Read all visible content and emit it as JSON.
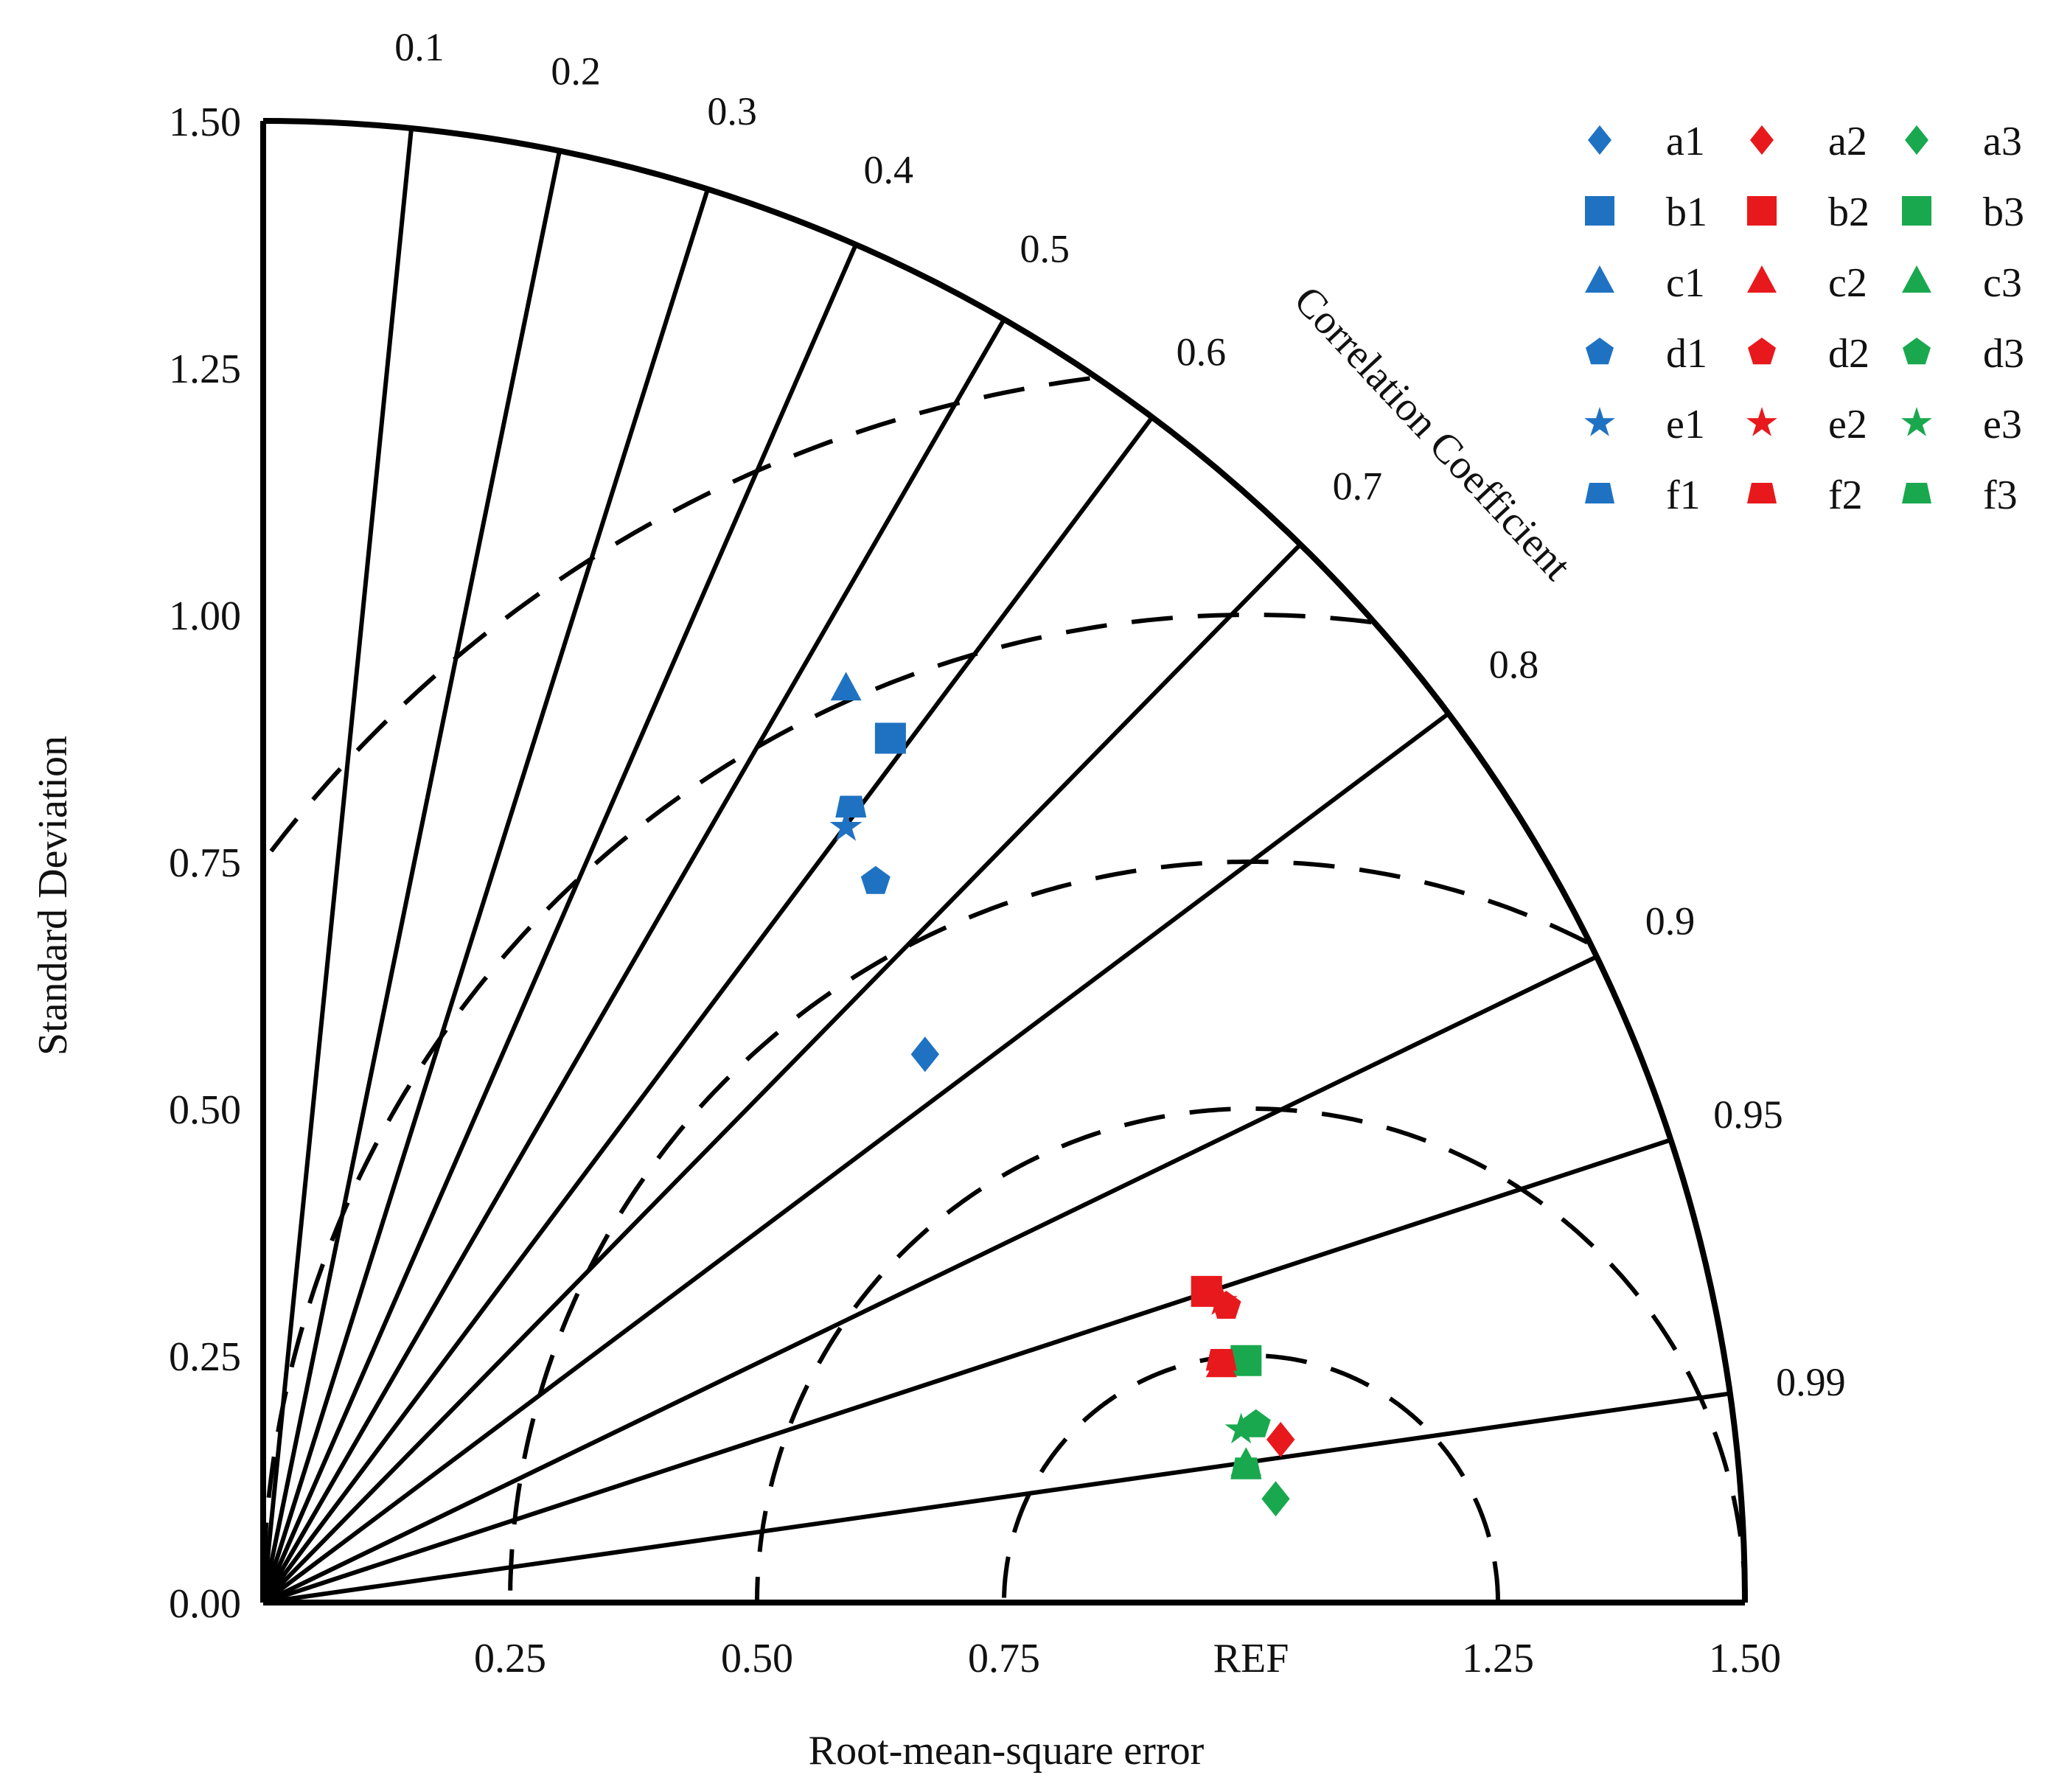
{
  "chart_data": {
    "type": "scatter",
    "subtype": "taylor-diagram",
    "xlabel": "Root-mean-square error",
    "ylabel": "Standard Deviation",
    "arc_label": "Correlation Coefficient",
    "std_ticks": [
      "0.00",
      "0.25",
      "0.50",
      "0.75",
      "1.00",
      "1.25",
      "1.50"
    ],
    "x_ticks": [
      "0.25",
      "0.50",
      "0.75",
      "REF",
      "1.25",
      "1.50"
    ],
    "x_tick_values": [
      0.25,
      0.5,
      0.75,
      1.0,
      1.25,
      1.5
    ],
    "corr_ticks": [
      "0.1",
      "0.2",
      "0.3",
      "0.4",
      "0.5",
      "0.6",
      "0.7",
      "0.8",
      "0.9",
      "0.95",
      "0.99"
    ],
    "corr_values": [
      0.1,
      0.2,
      0.3,
      0.4,
      0.5,
      0.6,
      0.7,
      0.8,
      0.9,
      0.95,
      0.99
    ],
    "rms_contours": [
      0.25,
      0.5,
      0.75,
      1.0,
      1.25
    ],
    "std_max": 1.5,
    "reference_std": 1.0,
    "grid": true,
    "legend_position": "top-right",
    "colors": {
      "group1": "#1f72c2",
      "group2": "#e8191c",
      "group3": "#1aa84f"
    },
    "series": [
      {
        "name": "a1",
        "marker": "diamond",
        "color": "#1f72c2",
        "x": 0.67,
        "y": 0.555
      },
      {
        "name": "a2",
        "marker": "diamond",
        "color": "#e8191c",
        "x": 1.03,
        "y": 0.165
      },
      {
        "name": "a3",
        "marker": "diamond",
        "color": "#1aa84f",
        "x": 1.025,
        "y": 0.105
      },
      {
        "name": "b1",
        "marker": "square",
        "color": "#1f72c2",
        "x": 0.635,
        "y": 0.875
      },
      {
        "name": "b2",
        "marker": "square",
        "color": "#e8191c",
        "x": 0.955,
        "y": 0.315
      },
      {
        "name": "b3",
        "marker": "square",
        "color": "#1aa84f",
        "x": 0.995,
        "y": 0.245
      },
      {
        "name": "c1",
        "marker": "triangle",
        "color": "#1f72c2",
        "x": 0.59,
        "y": 0.925
      },
      {
        "name": "c2",
        "marker": "triangle",
        "color": "#e8191c",
        "x": 0.97,
        "y": 0.24
      },
      {
        "name": "c3",
        "marker": "triangle",
        "color": "#1aa84f",
        "x": 0.995,
        "y": 0.14
      },
      {
        "name": "d1",
        "marker": "pentagon",
        "color": "#1f72c2",
        "x": 0.62,
        "y": 0.73
      },
      {
        "name": "d2",
        "marker": "pentagon",
        "color": "#e8191c",
        "x": 0.975,
        "y": 0.3
      },
      {
        "name": "d3",
        "marker": "pentagon",
        "color": "#1aa84f",
        "x": 1.005,
        "y": 0.18
      },
      {
        "name": "e1",
        "marker": "star",
        "color": "#1f72c2",
        "x": 0.59,
        "y": 0.785
      },
      {
        "name": "e2",
        "marker": "star",
        "color": "#e8191c",
        "x": 0.97,
        "y": 0.305
      },
      {
        "name": "e3",
        "marker": "star",
        "color": "#1aa84f",
        "x": 0.99,
        "y": 0.175
      },
      {
        "name": "f1",
        "marker": "trapezoid",
        "color": "#1f72c2",
        "x": 0.595,
        "y": 0.805
      },
      {
        "name": "f2",
        "marker": "trapezoid",
        "color": "#e8191c",
        "x": 0.97,
        "y": 0.245
      },
      {
        "name": "f3",
        "marker": "trapezoid",
        "color": "#1aa84f",
        "x": 0.995,
        "y": 0.135
      }
    ]
  }
}
